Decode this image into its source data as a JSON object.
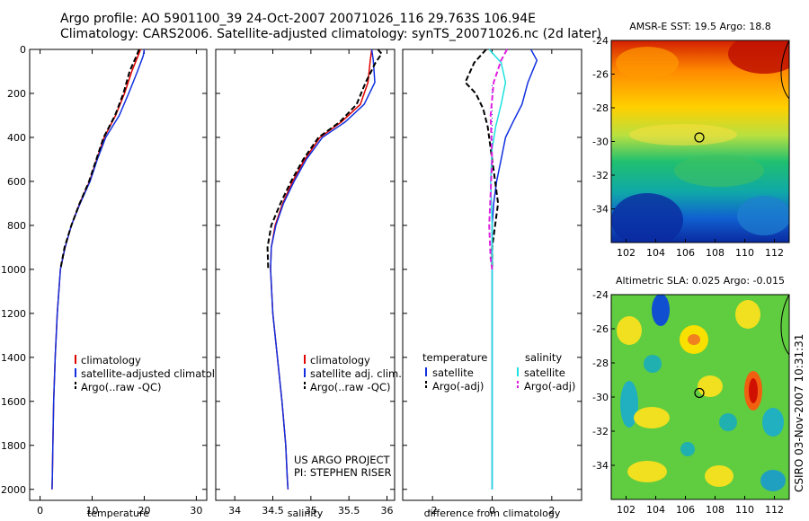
{
  "figure": {
    "title_line1": "Argo profile: AO 5901100_39 24-Oct-2007 20071026_116 29.763S 106.94E",
    "title_line2": "Climatology: CARS2006. Satellite-adjusted climatology: synTS_20071026.nc (2d later)",
    "credit": "CSIRO 03-Nov-2007 10:31:31",
    "project_line1": "US ARGO PROJECT",
    "project_line2": "PI: STEPHEN RISER"
  },
  "colors": {
    "climatology": "#e00000",
    "satellite": "#1030e0",
    "argo": "#000000",
    "sal_satellite": "#20e0e0",
    "sal_argo": "#e020e0",
    "circle": "#000000"
  },
  "chart_data": [
    {
      "type": "line",
      "id": "temperature",
      "xlabel": "temperature",
      "ylabel": "",
      "xlim": [
        -2,
        32
      ],
      "ylim": [
        2050,
        0
      ],
      "xticks": [
        0,
        10,
        20,
        30
      ],
      "yticks": [
        0,
        200,
        400,
        600,
        800,
        1000,
        1200,
        1400,
        1600,
        1800,
        2000
      ],
      "legend": [
        "climatology",
        "satellite-adjusted climatology",
        "Argo(..raw -QC)"
      ],
      "legend_location": "lower-right",
      "series": [
        {
          "name": "climatology",
          "style": "solid",
          "color_key": "climatology",
          "x": [
            19.3,
            18.8,
            17.6,
            16.2,
            14.5,
            12.3,
            10.9,
            9.5,
            7.6,
            6.0,
            4.8,
            3.9,
            3.3,
            2.9,
            2.6,
            2.45,
            2.35,
            2.3
          ],
          "y": [
            0,
            30,
            100,
            200,
            300,
            400,
            500,
            600,
            700,
            800,
            900,
            1000,
            1200,
            1400,
            1600,
            1800,
            1950,
            2000
          ]
        },
        {
          "name": "satellite-adjusted climatology",
          "style": "solid",
          "color_key": "satellite",
          "x": [
            20.0,
            19.8,
            18.7,
            17.0,
            15.2,
            12.6,
            11.0,
            9.6,
            7.7,
            6.0,
            4.8,
            3.9,
            3.3,
            2.9,
            2.6,
            2.45,
            2.35,
            2.3
          ],
          "y": [
            0,
            30,
            100,
            200,
            300,
            400,
            500,
            600,
            700,
            800,
            900,
            1000,
            1200,
            1400,
            1600,
            1800,
            1950,
            2000
          ]
        },
        {
          "name": "Argo(..raw -QC)",
          "style": "dashed",
          "color_key": "argo",
          "x": [
            19.0,
            18.5,
            17.2,
            16.0,
            14.4,
            12.2,
            10.8,
            9.4,
            7.6,
            6.0,
            4.7,
            3.9
          ],
          "y": [
            0,
            30,
            100,
            200,
            300,
            400,
            500,
            600,
            700,
            800,
            900,
            1000
          ]
        }
      ]
    },
    {
      "type": "line",
      "id": "salinity",
      "xlabel": "salinity",
      "ylabel": "",
      "xlim": [
        33.75,
        36.1
      ],
      "ylim": [
        2050,
        0
      ],
      "xticks": [
        34,
        34.5,
        35,
        35.5,
        36
      ],
      "legend": [
        "climatology",
        "satellite adj. clim.",
        "Argo(..raw -QC)"
      ],
      "legend_location": "lower-right",
      "series": [
        {
          "name": "climatology",
          "style": "solid",
          "color_key": "climatology",
          "x": [
            35.8,
            35.78,
            35.75,
            35.65,
            35.4,
            35.12,
            34.92,
            34.76,
            34.63,
            34.53,
            34.48,
            34.47,
            34.5,
            34.56,
            34.62,
            34.67,
            34.69,
            34.7
          ],
          "y": [
            0,
            50,
            150,
            250,
            330,
            400,
            500,
            600,
            700,
            800,
            900,
            1000,
            1200,
            1400,
            1600,
            1800,
            1950,
            2000
          ]
        },
        {
          "name": "satellite adj. clim.",
          "style": "solid",
          "color_key": "satellite",
          "x": [
            35.8,
            35.82,
            35.84,
            35.7,
            35.45,
            35.15,
            34.94,
            34.78,
            34.64,
            34.54,
            34.48,
            34.47,
            34.5,
            34.56,
            34.62,
            34.67,
            34.69,
            34.7
          ],
          "y": [
            0,
            50,
            150,
            250,
            330,
            400,
            500,
            600,
            700,
            800,
            900,
            1000,
            1200,
            1400,
            1600,
            1800,
            1950,
            2000
          ]
        },
        {
          "name": "Argo(..raw -QC)",
          "style": "dashed",
          "color_key": "argo",
          "x": [
            35.88,
            35.93,
            35.85,
            35.72,
            35.6,
            35.38,
            35.1,
            34.9,
            34.74,
            34.6,
            34.48,
            34.43,
            34.44
          ],
          "y": [
            0,
            20,
            60,
            150,
            250,
            330,
            400,
            500,
            600,
            700,
            800,
            900,
            1000
          ]
        }
      ]
    },
    {
      "type": "line",
      "id": "difference",
      "xlabel": "difference from climatology",
      "ylabel": "",
      "xlim": [
        -3,
        3
      ],
      "ylim": [
        2050,
        0
      ],
      "xticks": [
        -2,
        0,
        2
      ],
      "legend_groups": [
        {
          "heading": "temperature",
          "entries": [
            "satellite",
            "Argo(-adj)"
          ]
        },
        {
          "heading": "salinity",
          "entries": [
            "satellite",
            "Argo(-adj)"
          ]
        }
      ],
      "legend_location": "lower",
      "series": [
        {
          "name": "satellite",
          "group": "temperature",
          "style": "solid",
          "color_key": "satellite",
          "x": [
            1.3,
            1.5,
            1.2,
            1.0,
            0.7,
            0.45,
            0.3,
            0.15,
            0.05,
            0.0,
            0.0,
            0.0
          ],
          "y": [
            0,
            50,
            150,
            250,
            330,
            400,
            500,
            600,
            700,
            800,
            1000,
            2000
          ]
        },
        {
          "name": "Argo(-adj)",
          "group": "temperature",
          "style": "dashed",
          "color_key": "argo",
          "x": [
            -0.2,
            -0.6,
            -0.9,
            -0.55,
            -0.3,
            -0.15,
            -0.05,
            0.05,
            0.2,
            0.1,
            0.0,
            0.0
          ],
          "y": [
            0,
            60,
            150,
            200,
            270,
            350,
            450,
            550,
            700,
            800,
            900,
            1000
          ]
        },
        {
          "name": "satellite",
          "group": "salinity",
          "style": "solid",
          "color_key": "sal_satellite",
          "x": [
            -0.1,
            0.3,
            0.45,
            0.3,
            0.12,
            0.0,
            -0.05,
            0.0,
            0.0
          ],
          "y": [
            0,
            60,
            150,
            250,
            350,
            450,
            600,
            800,
            2000
          ]
        },
        {
          "name": "Argo(-adj)",
          "group": "salinity",
          "style": "dashed",
          "color_key": "sal_argo",
          "x": [
            0.5,
            0.3,
            0.05,
            -0.05,
            0.0,
            -0.1,
            -0.05,
            0.0
          ],
          "y": [
            0,
            50,
            150,
            300,
            500,
            800,
            950,
            1000
          ]
        }
      ]
    },
    {
      "type": "heatmap",
      "id": "sst_map",
      "title": "AMSR-E SST: 19.5 Argo: 18.8",
      "xlim": [
        101,
        113
      ],
      "ylim": [
        -36,
        -24
      ],
      "xticks": [
        102,
        104,
        106,
        108,
        110,
        112
      ],
      "yticks": [
        -24,
        -26,
        -28,
        -30,
        -32,
        -34
      ],
      "argo_position": {
        "lon": 106.94,
        "lat": -29.76
      }
    },
    {
      "type": "heatmap",
      "id": "sla_map",
      "title": "Altimetric SLA: 0.025 Argo: -0.015",
      "xlim": [
        101,
        113
      ],
      "ylim": [
        -36,
        -24
      ],
      "xticks": [
        102,
        104,
        106,
        108,
        110,
        112
      ],
      "yticks": [
        -24,
        -26,
        -28,
        -30,
        -32,
        -34
      ],
      "argo_position": {
        "lon": 106.94,
        "lat": -29.76
      }
    }
  ]
}
